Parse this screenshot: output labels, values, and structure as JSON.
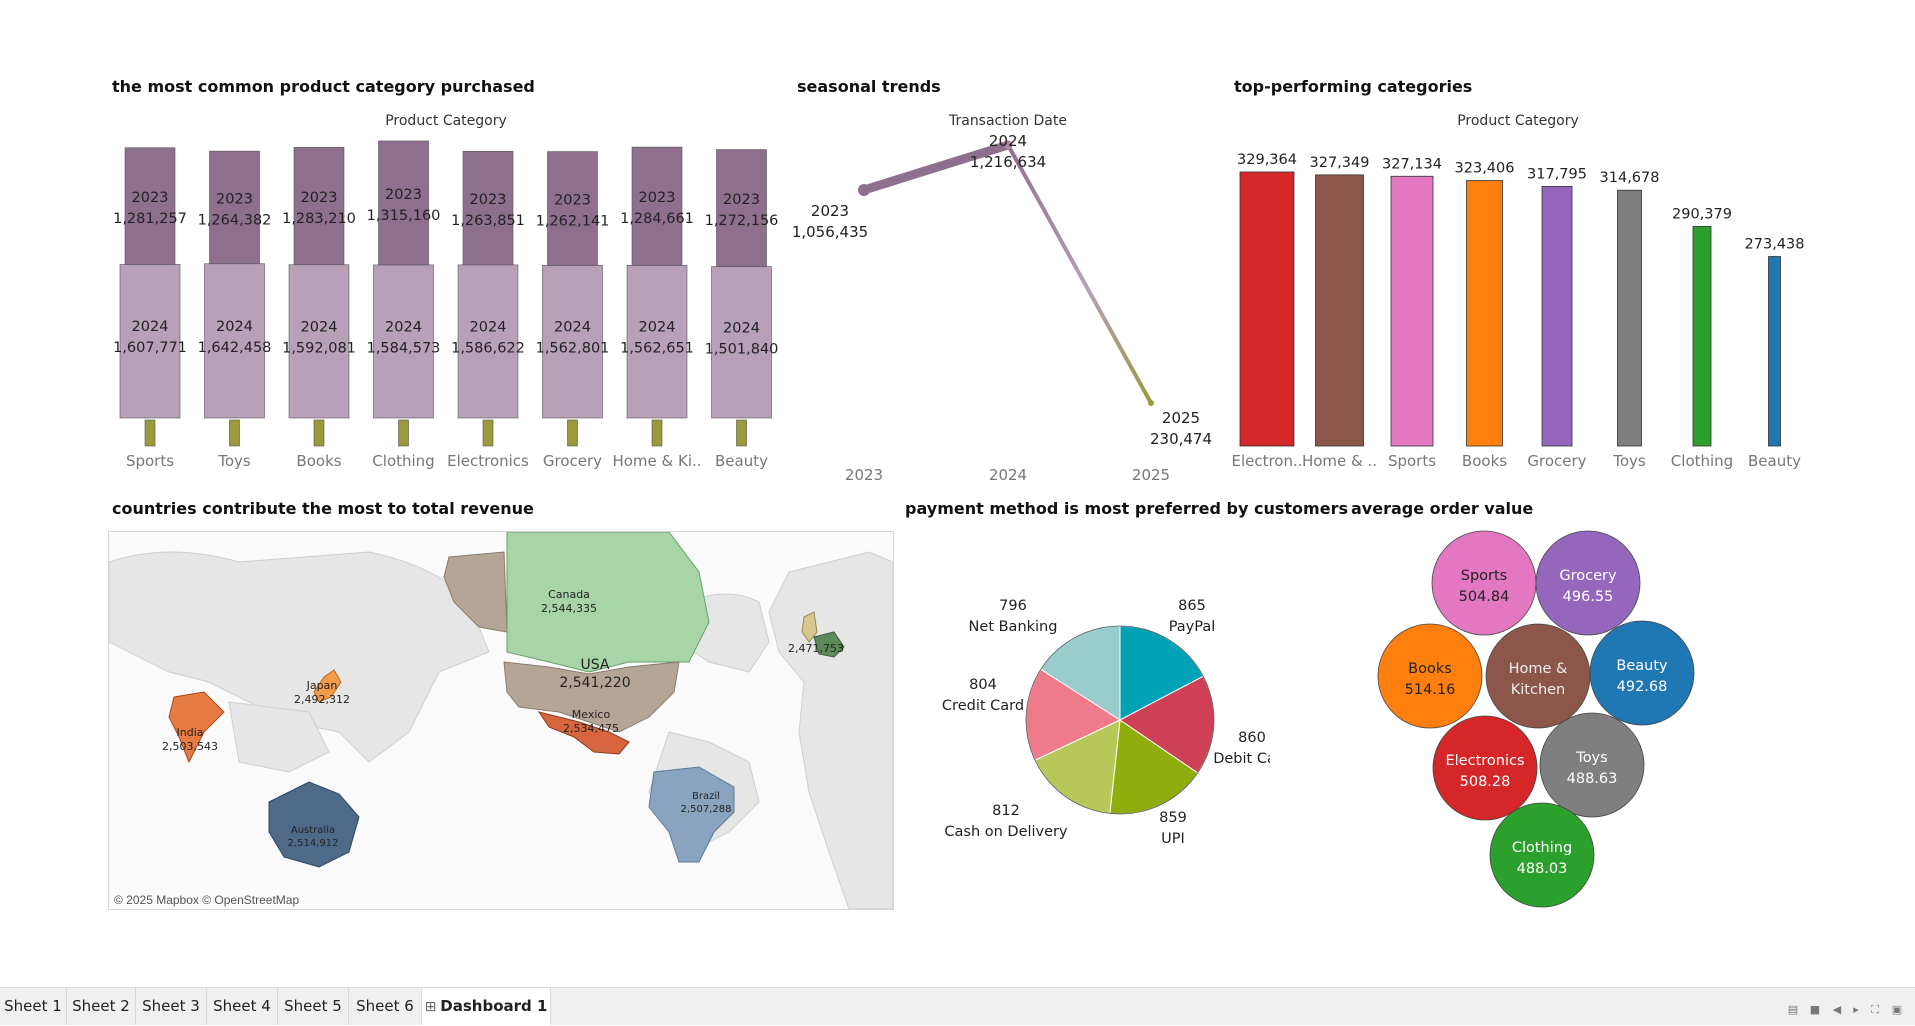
{
  "titles": {
    "common": "the most common product category purchased",
    "seasonal": "seasonal trends",
    "top": "top-performing categories",
    "countries": "countries contribute the most to total revenue",
    "payment": "payment method is most preferred by customers",
    "aov": "average order value"
  },
  "colors": {
    "y2023": "#8e6f8e",
    "y2024": "#b7a0b8",
    "y2025": "#9a9a3a",
    "category": {
      "Electronics": "#d62728",
      "Home & Kitchen": "#8c564b",
      "Sports": "#e377c2",
      "Books": "#ff7f0e",
      "Grocery": "#9467bd",
      "Toys": "#7f7f7f",
      "Clothing": "#2ca02c",
      "Beauty": "#1f77b4"
    }
  },
  "chart_data": [
    {
      "id": "common",
      "type": "bar",
      "title": "Product Category",
      "categories": [
        "Sports",
        "Toys",
        "Books",
        "Clothing",
        "Electronics",
        "Grocery",
        "Home & Ki..",
        "Beauty"
      ],
      "series": [
        {
          "name": "2023",
          "values": [
            1281257,
            1264382,
            1283210,
            1315160,
            1263851,
            1262141,
            1284661,
            1272156
          ],
          "labels": [
            "1,281,257",
            "1,264,382",
            "1,283,210",
            "1,315,160",
            "1,263,851",
            "1,262,141",
            "1,284,661",
            "1,272,156"
          ]
        },
        {
          "name": "2024",
          "values": [
            1607771,
            1642458,
            1592081,
            1584573,
            1586622,
            1562801,
            1562651,
            1501840
          ],
          "labels": [
            "1,607,771",
            "1,642,458",
            "1,592,081",
            "1,584,573",
            "1,586,622",
            "1,562,801",
            "1,562,651",
            "1,501,840"
          ]
        },
        {
          "name": "2025",
          "values": [
            300000,
            280000,
            290000,
            290000,
            300000,
            280000,
            270000,
            260000
          ],
          "labels": []
        }
      ]
    },
    {
      "id": "seasonal",
      "type": "line",
      "title": "Transaction Date",
      "x": [
        "2023",
        "2024",
        "2025"
      ],
      "values": [
        1056435,
        1216634,
        230474
      ],
      "labels": [
        "1,056,435",
        "1,216,634",
        "230,474"
      ]
    },
    {
      "id": "top",
      "type": "bar",
      "title": "Product Category",
      "categories": [
        "Electron..",
        "Home & ..",
        "Sports",
        "Books",
        "Grocery",
        "Toys",
        "Clothing",
        "Beauty"
      ],
      "color_keys": [
        "Electronics",
        "Home & Kitchen",
        "Sports",
        "Books",
        "Grocery",
        "Toys",
        "Clothing",
        "Beauty"
      ],
      "values": [
        329364,
        327349,
        327134,
        323406,
        317795,
        314678,
        290379,
        273438
      ],
      "labels": [
        "329,364",
        "327,349",
        "327,134",
        "323,406",
        "317,795",
        "314,678",
        "290,379",
        "273,438"
      ]
    },
    {
      "id": "payment",
      "type": "pie",
      "slices": [
        {
          "name": "PayPal",
          "value": 865,
          "color": "#00a2b6"
        },
        {
          "name": "Debit Card",
          "value": 860,
          "color": "#cf3f55"
        },
        {
          "name": "UPI",
          "value": 859,
          "color": "#8fae0e"
        },
        {
          "name": "Cash on Delivery",
          "value": 812,
          "color": "#b7c859"
        },
        {
          "name": "Credit Card",
          "value": 804,
          "color": "#ef7a8a"
        },
        {
          "name": "Net Banking",
          "value": 796,
          "color": "#98cccd"
        }
      ]
    },
    {
      "id": "aov",
      "type": "bubble",
      "bubbles": [
        {
          "name": "Sports",
          "value": "504.84"
        },
        {
          "name": "Grocery",
          "value": "496.55"
        },
        {
          "name": "Books",
          "value": "514.16"
        },
        {
          "name": "Home & Kitchen",
          "value": ""
        },
        {
          "name": "Beauty",
          "value": "492.68"
        },
        {
          "name": "Electronics",
          "value": "508.28"
        },
        {
          "name": "Toys",
          "value": "488.63"
        },
        {
          "name": "Clothing",
          "value": "488.03"
        }
      ]
    }
  ],
  "map": {
    "credit": "© 2025 Mapbox © OpenStreetMap",
    "countries": [
      {
        "name": "Canada",
        "value": "2,544,335"
      },
      {
        "name": "USA",
        "value": "2,541,220"
      },
      {
        "name": "Mexico",
        "value": "2,534,475"
      },
      {
        "name": "India",
        "value": "2,503,543"
      },
      {
        "name": "Japan",
        "value": "2,492,312"
      },
      {
        "name": "",
        "value": "2,471,753"
      },
      {
        "name": "Australia",
        "value": "2,514,912"
      },
      {
        "name": "Brazil",
        "value": "2,507,288"
      }
    ]
  },
  "tabs": [
    "Sheet 1",
    "Sheet 2",
    "Sheet 3",
    "Sheet 4",
    "Sheet 5",
    "Sheet 6",
    "Dashboard 1"
  ],
  "tab_icon": "grid-icon"
}
